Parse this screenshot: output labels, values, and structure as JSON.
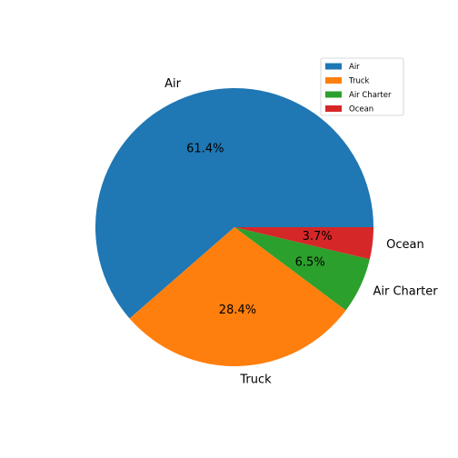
{
  "chart_data": {
    "type": "pie",
    "title": "",
    "labels": [
      "Air",
      "Truck",
      "Air Charter",
      "Ocean"
    ],
    "values": [
      61.4,
      28.4,
      6.5,
      3.7
    ],
    "percent_labels": [
      "61.4%",
      "28.4%",
      "6.5%",
      "3.7%"
    ],
    "colors": [
      "#1f77b4",
      "#ff7f0e",
      "#2ca02c",
      "#d62728"
    ],
    "start_angle_deg": 0,
    "direction": "counterclockwise",
    "legend": {
      "location": "top-right",
      "entries": [
        "Air",
        "Truck",
        "Air Charter",
        "Ocean"
      ]
    }
  }
}
